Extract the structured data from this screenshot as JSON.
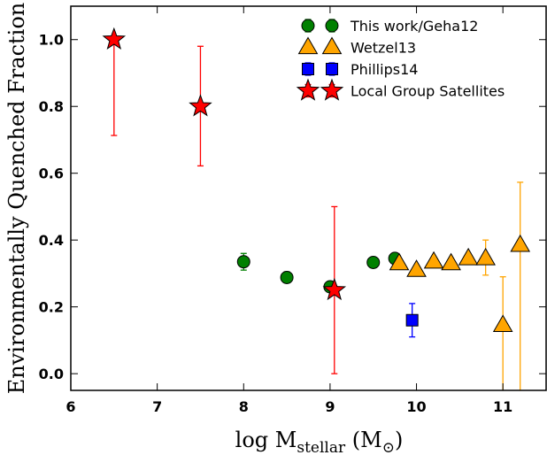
{
  "chart_data": {
    "type": "scatter",
    "xlabel": {
      "main": "log M",
      "sub": "stellar",
      "unit_open": " (M",
      "unit_sub": "⊙",
      "unit_close": ")"
    },
    "ylabel": "Environmentally Quenched Fraction",
    "xlim": [
      6,
      11.5
    ],
    "ylim": [
      -0.05,
      1.1
    ],
    "x_ticks": [
      6,
      7,
      8,
      9,
      10,
      11
    ],
    "x_tick_labels": [
      "6",
      "7",
      "8",
      "9",
      "10",
      "11"
    ],
    "y_ticks": [
      0.0,
      0.2,
      0.4,
      0.6,
      0.8,
      1.0
    ],
    "y_tick_labels": [
      "0.0",
      "0.2",
      "0.4",
      "0.6",
      "0.8",
      "1.0"
    ],
    "grid": false,
    "legend_position": "top-right",
    "series": [
      {
        "name": "This work/Geha12",
        "marker": "circle",
        "color": "#008000",
        "points": [
          {
            "x": 8.0,
            "y": 0.335,
            "lo": 0.31,
            "hi": 0.36
          },
          {
            "x": 8.5,
            "y": 0.288,
            "lo": 0.272,
            "hi": 0.305
          },
          {
            "x": 9.0,
            "y": 0.26,
            "lo": 0.25,
            "hi": 0.27
          },
          {
            "x": 9.5,
            "y": 0.333,
            "lo": 0.325,
            "hi": 0.34
          },
          {
            "x": 9.75,
            "y": 0.345,
            "lo": 0.34,
            "hi": 0.35
          }
        ]
      },
      {
        "name": "Wetzel13",
        "marker": "triangle",
        "color": "#FFA500",
        "points": [
          {
            "x": 9.8,
            "y": 0.33,
            "lo": 0.32,
            "hi": 0.34
          },
          {
            "x": 10.0,
            "y": 0.31,
            "lo": 0.3,
            "hi": 0.32
          },
          {
            "x": 10.2,
            "y": 0.335,
            "lo": 0.325,
            "hi": 0.345
          },
          {
            "x": 10.4,
            "y": 0.33,
            "lo": 0.32,
            "hi": 0.34
          },
          {
            "x": 10.6,
            "y": 0.345,
            "lo": 0.335,
            "hi": 0.355
          },
          {
            "x": 10.8,
            "y": 0.345,
            "lo": 0.295,
            "hi": 0.4
          },
          {
            "x": 11.0,
            "y": 0.145,
            "lo": -0.06,
            "hi": 0.29
          },
          {
            "x": 11.2,
            "y": 0.385,
            "lo": -0.06,
            "hi": 0.573
          }
        ]
      },
      {
        "name": "Phillips14",
        "marker": "square",
        "color": "#0000FF",
        "points": [
          {
            "x": 9.95,
            "y": 0.16,
            "lo": 0.11,
            "hi": 0.21
          }
        ]
      },
      {
        "name": "Local Group Satellites",
        "marker": "star",
        "color": "#FF0000",
        "points": [
          {
            "x": 6.5,
            "y": 1.0,
            "lo": 0.713,
            "hi": 1.0
          },
          {
            "x": 7.5,
            "y": 0.8,
            "lo": 0.622,
            "hi": 0.98
          },
          {
            "x": 9.05,
            "y": 0.25,
            "lo": 0.0,
            "hi": 0.5
          }
        ]
      }
    ]
  }
}
